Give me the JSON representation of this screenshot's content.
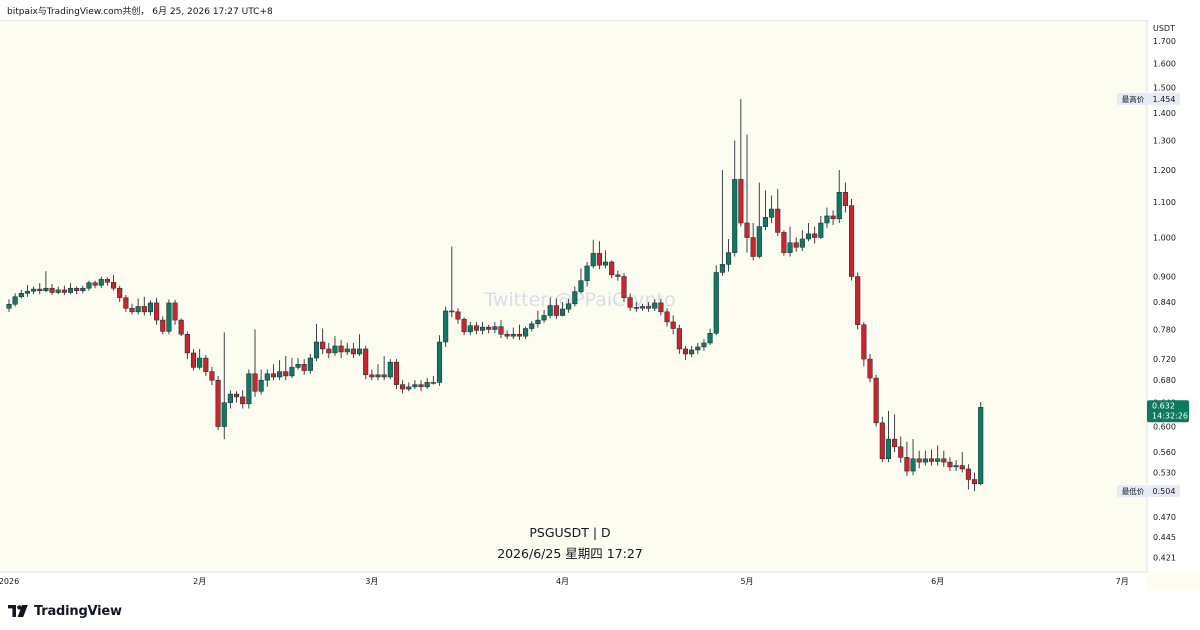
{
  "header": {
    "share_text": "bitpaix与TradingView.com共创，  6月 25, 2026 17:27 UTC+8"
  },
  "brand": {
    "name": "TradingView",
    "icon": "tradingview-logo-icon"
  },
  "watermark": "Twitter:@PPaiCrypto",
  "symbol_caption": "PSGUSDT | D",
  "datetime_caption": "2026/6/25 星期四 17:27",
  "price_axis": {
    "unit": "USDT",
    "ticks": [
      "1.700",
      "1.600",
      "1.500",
      "1.400",
      "1.300",
      "1.200",
      "1.100",
      "1.000",
      "0.900",
      "0.840",
      "0.780",
      "0.720",
      "0.680",
      "0.640",
      "0.600",
      "0.560",
      "0.530",
      "0.500",
      "0.470",
      "0.445",
      "0.421"
    ]
  },
  "markers": {
    "high": {
      "label": "最高价",
      "value": "1.454"
    },
    "low": {
      "label": "最低价",
      "value": "0.504"
    },
    "last": {
      "value": "0.632",
      "countdown": "14:32:26"
    }
  },
  "time_axis": {
    "labels": [
      {
        "text": "2026",
        "date": "2026-01-01"
      },
      {
        "text": "2月",
        "date": "2026-02-01"
      },
      {
        "text": "3月",
        "date": "2026-03-01"
      },
      {
        "text": "4月",
        "date": "2026-04-01"
      },
      {
        "text": "5月",
        "date": "2026-05-01"
      },
      {
        "text": "6月",
        "date": "2026-06-01"
      },
      {
        "text": "7月",
        "date": "2026-07-01"
      }
    ]
  },
  "colors": {
    "up": "#089981",
    "down": "#f23645",
    "up_body": "#0f7a60",
    "down_body": "#c8262c",
    "background": "#fdfcf1",
    "axis_text": "#131722",
    "marker_bg": "#e8ebf5",
    "last_bg": "#0d7a5f"
  },
  "chart_data": {
    "type": "candlestick",
    "symbol": "PSGUSDT",
    "interval": "D",
    "y_scale": "log",
    "y_range": [
      0.405,
      1.8
    ],
    "x_range": [
      "2026-01-01",
      "2026-07-03"
    ],
    "start_date": "2026-01-01",
    "candles": [
      [
        0.826,
        0.835,
        0.846,
        0.818
      ],
      [
        0.835,
        0.852,
        0.86,
        0.83
      ],
      [
        0.852,
        0.86,
        0.868,
        0.848
      ],
      [
        0.86,
        0.865,
        0.88,
        0.852
      ],
      [
        0.865,
        0.87,
        0.876,
        0.858
      ],
      [
        0.87,
        0.866,
        0.884,
        0.858
      ],
      [
        0.866,
        0.872,
        0.913,
        0.862
      ],
      [
        0.872,
        0.862,
        0.882,
        0.856
      ],
      [
        0.862,
        0.868,
        0.876,
        0.858
      ],
      [
        0.868,
        0.862,
        0.878,
        0.856
      ],
      [
        0.862,
        0.872,
        0.884,
        0.858
      ],
      [
        0.872,
        0.866,
        0.876,
        0.858
      ],
      [
        0.866,
        0.872,
        0.878,
        0.86
      ],
      [
        0.872,
        0.885,
        0.89,
        0.866
      ],
      [
        0.885,
        0.879,
        0.89,
        0.872
      ],
      [
        0.879,
        0.893,
        0.9,
        0.872
      ],
      [
        0.893,
        0.886,
        0.898,
        0.878
      ],
      [
        0.886,
        0.872,
        0.904,
        0.866
      ],
      [
        0.872,
        0.85,
        0.878,
        0.84
      ],
      [
        0.85,
        0.826,
        0.856,
        0.818
      ],
      [
        0.826,
        0.818,
        0.836,
        0.812
      ],
      [
        0.818,
        0.83,
        0.848,
        0.812
      ],
      [
        0.83,
        0.818,
        0.852,
        0.81
      ],
      [
        0.818,
        0.838,
        0.844,
        0.81
      ],
      [
        0.838,
        0.8,
        0.85,
        0.79
      ],
      [
        0.8,
        0.776,
        0.808,
        0.77
      ],
      [
        0.776,
        0.838,
        0.846,
        0.77
      ],
      [
        0.838,
        0.8,
        0.845,
        0.79
      ],
      [
        0.8,
        0.77,
        0.804,
        0.766
      ],
      [
        0.77,
        0.732,
        0.776,
        0.72
      ],
      [
        0.732,
        0.704,
        0.74,
        0.698
      ],
      [
        0.704,
        0.722,
        0.74,
        0.7
      ],
      [
        0.722,
        0.696,
        0.728,
        0.688
      ],
      [
        0.696,
        0.68,
        0.705,
        0.671
      ],
      [
        0.68,
        0.6,
        0.688,
        0.594
      ],
      [
        0.6,
        0.64,
        0.774,
        0.58
      ],
      [
        0.64,
        0.655,
        0.662,
        0.63
      ],
      [
        0.655,
        0.65,
        0.66,
        0.64
      ],
      [
        0.65,
        0.638,
        0.662,
        0.63
      ],
      [
        0.638,
        0.692,
        0.7,
        0.63
      ],
      [
        0.692,
        0.66,
        0.78,
        0.65
      ],
      [
        0.66,
        0.68,
        0.7,
        0.654
      ],
      [
        0.68,
        0.692,
        0.7,
        0.668
      ],
      [
        0.692,
        0.686,
        0.71,
        0.68
      ],
      [
        0.686,
        0.696,
        0.718,
        0.68
      ],
      [
        0.696,
        0.688,
        0.726,
        0.68
      ],
      [
        0.688,
        0.704,
        0.722,
        0.684
      ],
      [
        0.704,
        0.71,
        0.722,
        0.7
      ],
      [
        0.71,
        0.698,
        0.72,
        0.69
      ],
      [
        0.698,
        0.722,
        0.73,
        0.692
      ],
      [
        0.722,
        0.754,
        0.792,
        0.716
      ],
      [
        0.754,
        0.74,
        0.782,
        0.73
      ],
      [
        0.74,
        0.732,
        0.752,
        0.722
      ],
      [
        0.732,
        0.746,
        0.766,
        0.726
      ],
      [
        0.746,
        0.734,
        0.758,
        0.722
      ],
      [
        0.734,
        0.74,
        0.752,
        0.728
      ],
      [
        0.74,
        0.73,
        0.752,
        0.722
      ],
      [
        0.73,
        0.74,
        0.77,
        0.726
      ],
      [
        0.74,
        0.69,
        0.746,
        0.682
      ],
      [
        0.69,
        0.686,
        0.7,
        0.68
      ],
      [
        0.686,
        0.69,
        0.71,
        0.68
      ],
      [
        0.69,
        0.686,
        0.726,
        0.68
      ],
      [
        0.686,
        0.714,
        0.72,
        0.682
      ],
      [
        0.714,
        0.672,
        0.72,
        0.664
      ],
      [
        0.672,
        0.664,
        0.68,
        0.656
      ],
      [
        0.664,
        0.668,
        0.676,
        0.66
      ],
      [
        0.668,
        0.672,
        0.68,
        0.664
      ],
      [
        0.672,
        0.668,
        0.68,
        0.66
      ],
      [
        0.668,
        0.676,
        0.684,
        0.664
      ],
      [
        0.676,
        0.676,
        0.688,
        0.672
      ],
      [
        0.676,
        0.754,
        0.768,
        0.67
      ],
      [
        0.754,
        0.82,
        0.83,
        0.744
      ],
      [
        0.82,
        0.818,
        0.976,
        0.806
      ],
      [
        0.818,
        0.802,
        0.826,
        0.792
      ],
      [
        0.802,
        0.775,
        0.806,
        0.768
      ],
      [
        0.775,
        0.788,
        0.796,
        0.768
      ],
      [
        0.788,
        0.778,
        0.796,
        0.77
      ],
      [
        0.778,
        0.785,
        0.796,
        0.77
      ],
      [
        0.785,
        0.78,
        0.79,
        0.772
      ],
      [
        0.78,
        0.786,
        0.796,
        0.772
      ],
      [
        0.786,
        0.77,
        0.8,
        0.762
      ],
      [
        0.77,
        0.766,
        0.778,
        0.76
      ],
      [
        0.766,
        0.77,
        0.784,
        0.76
      ],
      [
        0.77,
        0.766,
        0.79,
        0.758
      ],
      [
        0.766,
        0.782,
        0.786,
        0.76
      ],
      [
        0.782,
        0.792,
        0.798,
        0.776
      ],
      [
        0.792,
        0.8,
        0.82,
        0.784
      ],
      [
        0.8,
        0.81,
        0.822,
        0.794
      ],
      [
        0.81,
        0.832,
        0.85,
        0.804
      ],
      [
        0.832,
        0.81,
        0.848,
        0.802
      ],
      [
        0.81,
        0.824,
        0.84,
        0.808
      ],
      [
        0.824,
        0.836,
        0.848,
        0.816
      ],
      [
        0.836,
        0.864,
        0.876,
        0.83
      ],
      [
        0.864,
        0.89,
        0.92,
        0.86
      ],
      [
        0.89,
        0.926,
        0.936,
        0.876
      ],
      [
        0.926,
        0.958,
        0.994,
        0.92
      ],
      [
        0.958,
        0.928,
        0.99,
        0.918
      ],
      [
        0.928,
        0.936,
        0.966,
        0.92
      ],
      [
        0.936,
        0.904,
        0.94,
        0.896
      ],
      [
        0.904,
        0.9,
        0.914,
        0.89
      ],
      [
        0.9,
        0.85,
        0.908,
        0.84
      ],
      [
        0.85,
        0.828,
        0.86,
        0.82
      ],
      [
        0.828,
        0.826,
        0.84,
        0.818
      ],
      [
        0.826,
        0.83,
        0.836,
        0.82
      ],
      [
        0.83,
        0.826,
        0.84,
        0.818
      ],
      [
        0.826,
        0.838,
        0.846,
        0.82
      ],
      [
        0.838,
        0.818,
        0.848,
        0.81
      ],
      [
        0.818,
        0.796,
        0.826,
        0.786
      ],
      [
        0.796,
        0.782,
        0.81,
        0.77
      ],
      [
        0.782,
        0.74,
        0.79,
        0.73
      ],
      [
        0.74,
        0.73,
        0.746,
        0.718
      ],
      [
        0.73,
        0.738,
        0.746,
        0.724
      ],
      [
        0.738,
        0.744,
        0.752,
        0.73
      ],
      [
        0.744,
        0.752,
        0.76,
        0.736
      ],
      [
        0.752,
        0.772,
        0.782,
        0.748
      ],
      [
        0.772,
        0.91,
        0.928,
        0.768
      ],
      [
        0.91,
        0.93,
        1.2,
        0.902
      ],
      [
        0.93,
        0.96,
        0.996,
        0.912
      ],
      [
        0.96,
        1.17,
        1.3,
        0.95
      ],
      [
        1.17,
        1.04,
        1.454,
        1.03
      ],
      [
        1.04,
        1.0,
        1.32,
        0.96
      ],
      [
        1.0,
        0.95,
        1.04,
        0.94
      ],
      [
        0.95,
        1.03,
        1.16,
        0.945
      ],
      [
        1.03,
        1.056,
        1.136,
        1.02
      ],
      [
        1.056,
        1.08,
        1.12,
        1.04
      ],
      [
        1.08,
        1.014,
        1.14,
        1.004
      ],
      [
        1.014,
        0.96,
        1.02,
        0.952
      ],
      [
        0.96,
        0.986,
        1.03,
        0.95
      ],
      [
        0.986,
        0.974,
        1.0,
        0.962
      ],
      [
        0.974,
        0.996,
        1.02,
        0.964
      ],
      [
        0.996,
        1.01,
        1.04,
        0.99
      ],
      [
        1.01,
        1.0,
        1.03,
        0.984
      ],
      [
        1.0,
        1.04,
        1.06,
        0.996
      ],
      [
        1.04,
        1.06,
        1.084,
        1.026
      ],
      [
        1.06,
        1.052,
        1.076,
        1.034
      ],
      [
        1.052,
        1.13,
        1.2,
        1.04
      ],
      [
        1.13,
        1.09,
        1.16,
        1.07
      ],
      [
        1.09,
        0.9,
        1.11,
        0.89
      ],
      [
        0.9,
        0.79,
        0.91,
        0.78
      ],
      [
        0.79,
        0.72,
        0.796,
        0.706
      ],
      [
        0.72,
        0.684,
        0.73,
        0.676
      ],
      [
        0.684,
        0.606,
        0.69,
        0.6
      ],
      [
        0.606,
        0.55,
        0.616,
        0.545
      ],
      [
        0.55,
        0.58,
        0.626,
        0.545
      ],
      [
        0.58,
        0.568,
        0.62,
        0.56
      ],
      [
        0.568,
        0.552,
        0.584,
        0.544
      ],
      [
        0.552,
        0.532,
        0.576,
        0.525
      ],
      [
        0.532,
        0.55,
        0.58,
        0.526
      ],
      [
        0.55,
        0.545,
        0.562,
        0.536
      ],
      [
        0.545,
        0.55,
        0.562,
        0.54
      ],
      [
        0.55,
        0.546,
        0.564,
        0.54
      ],
      [
        0.546,
        0.55,
        0.57,
        0.54
      ],
      [
        0.55,
        0.545,
        0.562,
        0.538
      ],
      [
        0.545,
        0.538,
        0.552,
        0.532
      ],
      [
        0.538,
        0.54,
        0.548,
        0.532
      ],
      [
        0.54,
        0.535,
        0.56,
        0.53
      ],
      [
        0.535,
        0.52,
        0.542,
        0.506
      ],
      [
        0.52,
        0.514,
        0.53,
        0.504
      ],
      [
        0.514,
        0.632,
        0.641,
        0.512
      ]
    ]
  }
}
